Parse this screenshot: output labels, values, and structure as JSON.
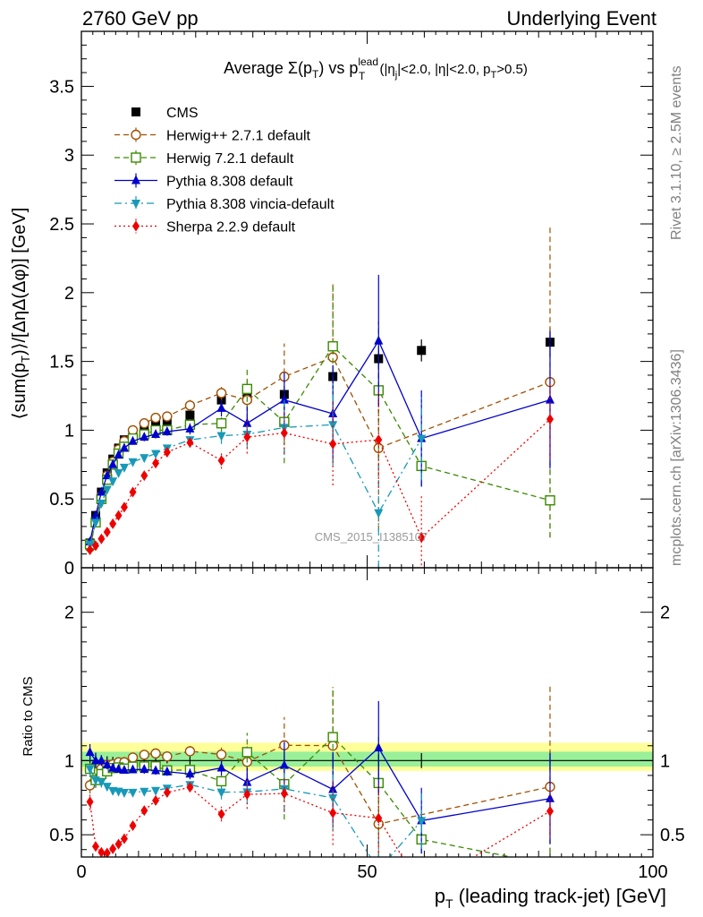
{
  "header": {
    "left": "2760 GeV pp",
    "right": "Underlying Event"
  },
  "side_labels": {
    "top": "Rivet 3.1.10, ≥ 2.5M events",
    "bottom": "mcplots.cern.ch [arXiv:1306.3436]"
  },
  "watermark": "CMS_2015_I1385107",
  "chart_data": {
    "type": "scatter",
    "title": {
      "prefix": "Average ",
      "sigma": "Σ(p",
      "sigma_sub": "T",
      "mid": ") vs p",
      "lead_sup": "lead",
      "lead_sub": "T",
      "cuts": " (|η",
      "cuts_sub": "j",
      "cuts2": "|<2.0, |η|<2.0, p",
      "cuts_sub2": "T",
      "cuts3": ">0.5)"
    },
    "xlabel": "p_T (leading track-jet) [GeV]",
    "xlabel_parts": {
      "main": "p",
      "sub": "T",
      "rest": " (leading track-jet) [GeV]"
    },
    "ylabel_main": "⟨sum(p_T)⟩/[ΔηΔ(Δφ)] [GeV]",
    "ylabel_parts": {
      "pre": "⟨sum(p",
      "sub": "T",
      "post": ")⟩/[ΔηΔ(Δφ)] [GeV]"
    },
    "ylabel_ratio": "Ratio to CMS",
    "xlim": [
      0,
      100
    ],
    "ylim_main": [
      0,
      3.9
    ],
    "ylim_ratio": [
      0.35,
      2.3
    ],
    "x_ticks": [
      "0",
      "50",
      "100"
    ],
    "y_ticks_main": [
      "0",
      "0.5",
      "1",
      "1.5",
      "2",
      "2.5",
      "3",
      "3.5"
    ],
    "y_ticks_ratio": [
      "0.5",
      "1",
      "2"
    ],
    "legend_position": "top-left",
    "grid": false,
    "series": [
      {
        "name": "CMS",
        "color": "#000000",
        "marker": "square-filled",
        "line": "none",
        "x": [
          1.5,
          2.5,
          3.5,
          4.5,
          5.5,
          6.5,
          7.5,
          9.0,
          11.0,
          13.0,
          15.0,
          19.0,
          24.5,
          29.0,
          35.5,
          44.0,
          52.0,
          59.5,
          82.0
        ],
        "y": [
          0.18,
          0.38,
          0.55,
          0.69,
          0.79,
          0.87,
          0.93,
          0.98,
          1.01,
          1.04,
          1.07,
          1.11,
          1.22,
          1.23,
          1.26,
          1.39,
          1.52,
          1.58,
          1.64
        ],
        "yerr": [
          0.01,
          0.02,
          0.02,
          0.02,
          0.02,
          0.02,
          0.02,
          0.02,
          0.02,
          0.02,
          0.02,
          0.03,
          0.03,
          0.03,
          0.04,
          0.05,
          0.06,
          0.08,
          0.1
        ]
      },
      {
        "name": "Herwig++ 2.7.1 default",
        "color": "#a05000",
        "marker": "circle-open",
        "line": "dashed",
        "x": [
          1.5,
          2.5,
          3.5,
          4.5,
          5.5,
          6.5,
          7.5,
          9.0,
          11.0,
          13.0,
          15.0,
          19.0,
          24.5,
          29.0,
          35.5,
          44.0,
          52.0,
          82.0
        ],
        "y": [
          0.15,
          0.33,
          0.52,
          0.67,
          0.77,
          0.86,
          0.92,
          1.0,
          1.05,
          1.09,
          1.1,
          1.18,
          1.27,
          1.22,
          1.39,
          1.53,
          0.87,
          1.35
        ],
        "yerr": [
          0.01,
          0.02,
          0.02,
          0.02,
          0.02,
          0.02,
          0.02,
          0.02,
          0.03,
          0.03,
          0.03,
          0.04,
          0.06,
          0.14,
          0.24,
          0.55,
          0.6,
          1.13
        ]
      },
      {
        "name": "Herwig 7.2.1 default",
        "color": "#3a8a00",
        "marker": "square-open",
        "line": "dashed",
        "x": [
          1.5,
          2.5,
          3.5,
          4.5,
          5.5,
          6.5,
          7.5,
          9.0,
          11.0,
          13.0,
          15.0,
          19.0,
          24.5,
          29.0,
          35.5,
          44.0,
          52.0,
          59.5,
          82.0
        ],
        "y": [
          0.17,
          0.33,
          0.5,
          0.64,
          0.75,
          0.83,
          0.88,
          0.94,
          0.97,
          1.0,
          1.0,
          1.04,
          1.05,
          1.3,
          1.06,
          1.61,
          1.29,
          0.74,
          0.49
        ],
        "yerr": [
          0.01,
          0.02,
          0.02,
          0.02,
          0.02,
          0.02,
          0.02,
          0.02,
          0.03,
          0.03,
          0.03,
          0.04,
          0.06,
          0.16,
          0.3,
          0.45,
          0.5,
          0.15,
          0.27
        ]
      },
      {
        "name": "Pythia 8.308 default",
        "color": "#0000cc",
        "marker": "triangle-up",
        "line": "solid",
        "x": [
          1.5,
          2.5,
          3.5,
          4.5,
          5.5,
          6.5,
          7.5,
          9.0,
          11.0,
          13.0,
          15.0,
          19.0,
          24.5,
          29.0,
          35.5,
          44.0,
          52.0,
          59.5,
          82.0
        ],
        "y": [
          0.19,
          0.38,
          0.55,
          0.67,
          0.75,
          0.82,
          0.87,
          0.92,
          0.95,
          0.97,
          0.99,
          1.01,
          1.16,
          1.05,
          1.22,
          1.12,
          1.65,
          0.94,
          1.22
        ],
        "yerr": [
          0.01,
          0.02,
          0.02,
          0.02,
          0.02,
          0.02,
          0.02,
          0.02,
          0.03,
          0.03,
          0.03,
          0.04,
          0.06,
          0.12,
          0.2,
          0.35,
          0.48,
          0.35,
          0.5
        ]
      },
      {
        "name": "Pythia 8.308 vincia-default",
        "color": "#1899b8",
        "marker": "triangle-down",
        "line": "dashdot",
        "x": [
          1.5,
          2.5,
          3.5,
          4.5,
          5.5,
          6.5,
          7.5,
          9.0,
          11.0,
          13.0,
          15.0,
          19.0,
          24.5,
          29.0,
          35.5,
          44.0,
          52.0,
          59.5
        ],
        "y": [
          0.17,
          0.33,
          0.47,
          0.57,
          0.63,
          0.69,
          0.73,
          0.77,
          0.8,
          0.83,
          0.87,
          0.93,
          0.96,
          0.97,
          1.02,
          1.04,
          0.4,
          0.94
        ],
        "yerr": [
          0.01,
          0.02,
          0.02,
          0.02,
          0.02,
          0.02,
          0.02,
          0.02,
          0.02,
          0.03,
          0.03,
          0.04,
          0.06,
          0.1,
          0.2,
          0.3,
          0.4,
          0.3
        ]
      },
      {
        "name": "Sherpa 2.2.9 default",
        "color": "#ee0000",
        "marker": "diamond",
        "line": "dotted",
        "x": [
          1.5,
          2.5,
          3.5,
          4.5,
          5.5,
          6.5,
          7.5,
          9.0,
          11.0,
          13.0,
          15.0,
          19.0,
          24.5,
          29.0,
          35.5,
          44.0,
          52.0,
          59.5,
          82.0
        ],
        "y": [
          0.13,
          0.16,
          0.21,
          0.26,
          0.32,
          0.38,
          0.44,
          0.55,
          0.67,
          0.76,
          0.84,
          0.91,
          0.78,
          0.95,
          0.98,
          0.9,
          0.93,
          0.22,
          1.08
        ],
        "yerr": [
          0.01,
          0.01,
          0.01,
          0.02,
          0.02,
          0.02,
          0.02,
          0.02,
          0.03,
          0.03,
          0.03,
          0.03,
          0.06,
          0.12,
          0.15,
          0.3,
          0.35,
          0.3,
          0.28
        ]
      }
    ]
  }
}
